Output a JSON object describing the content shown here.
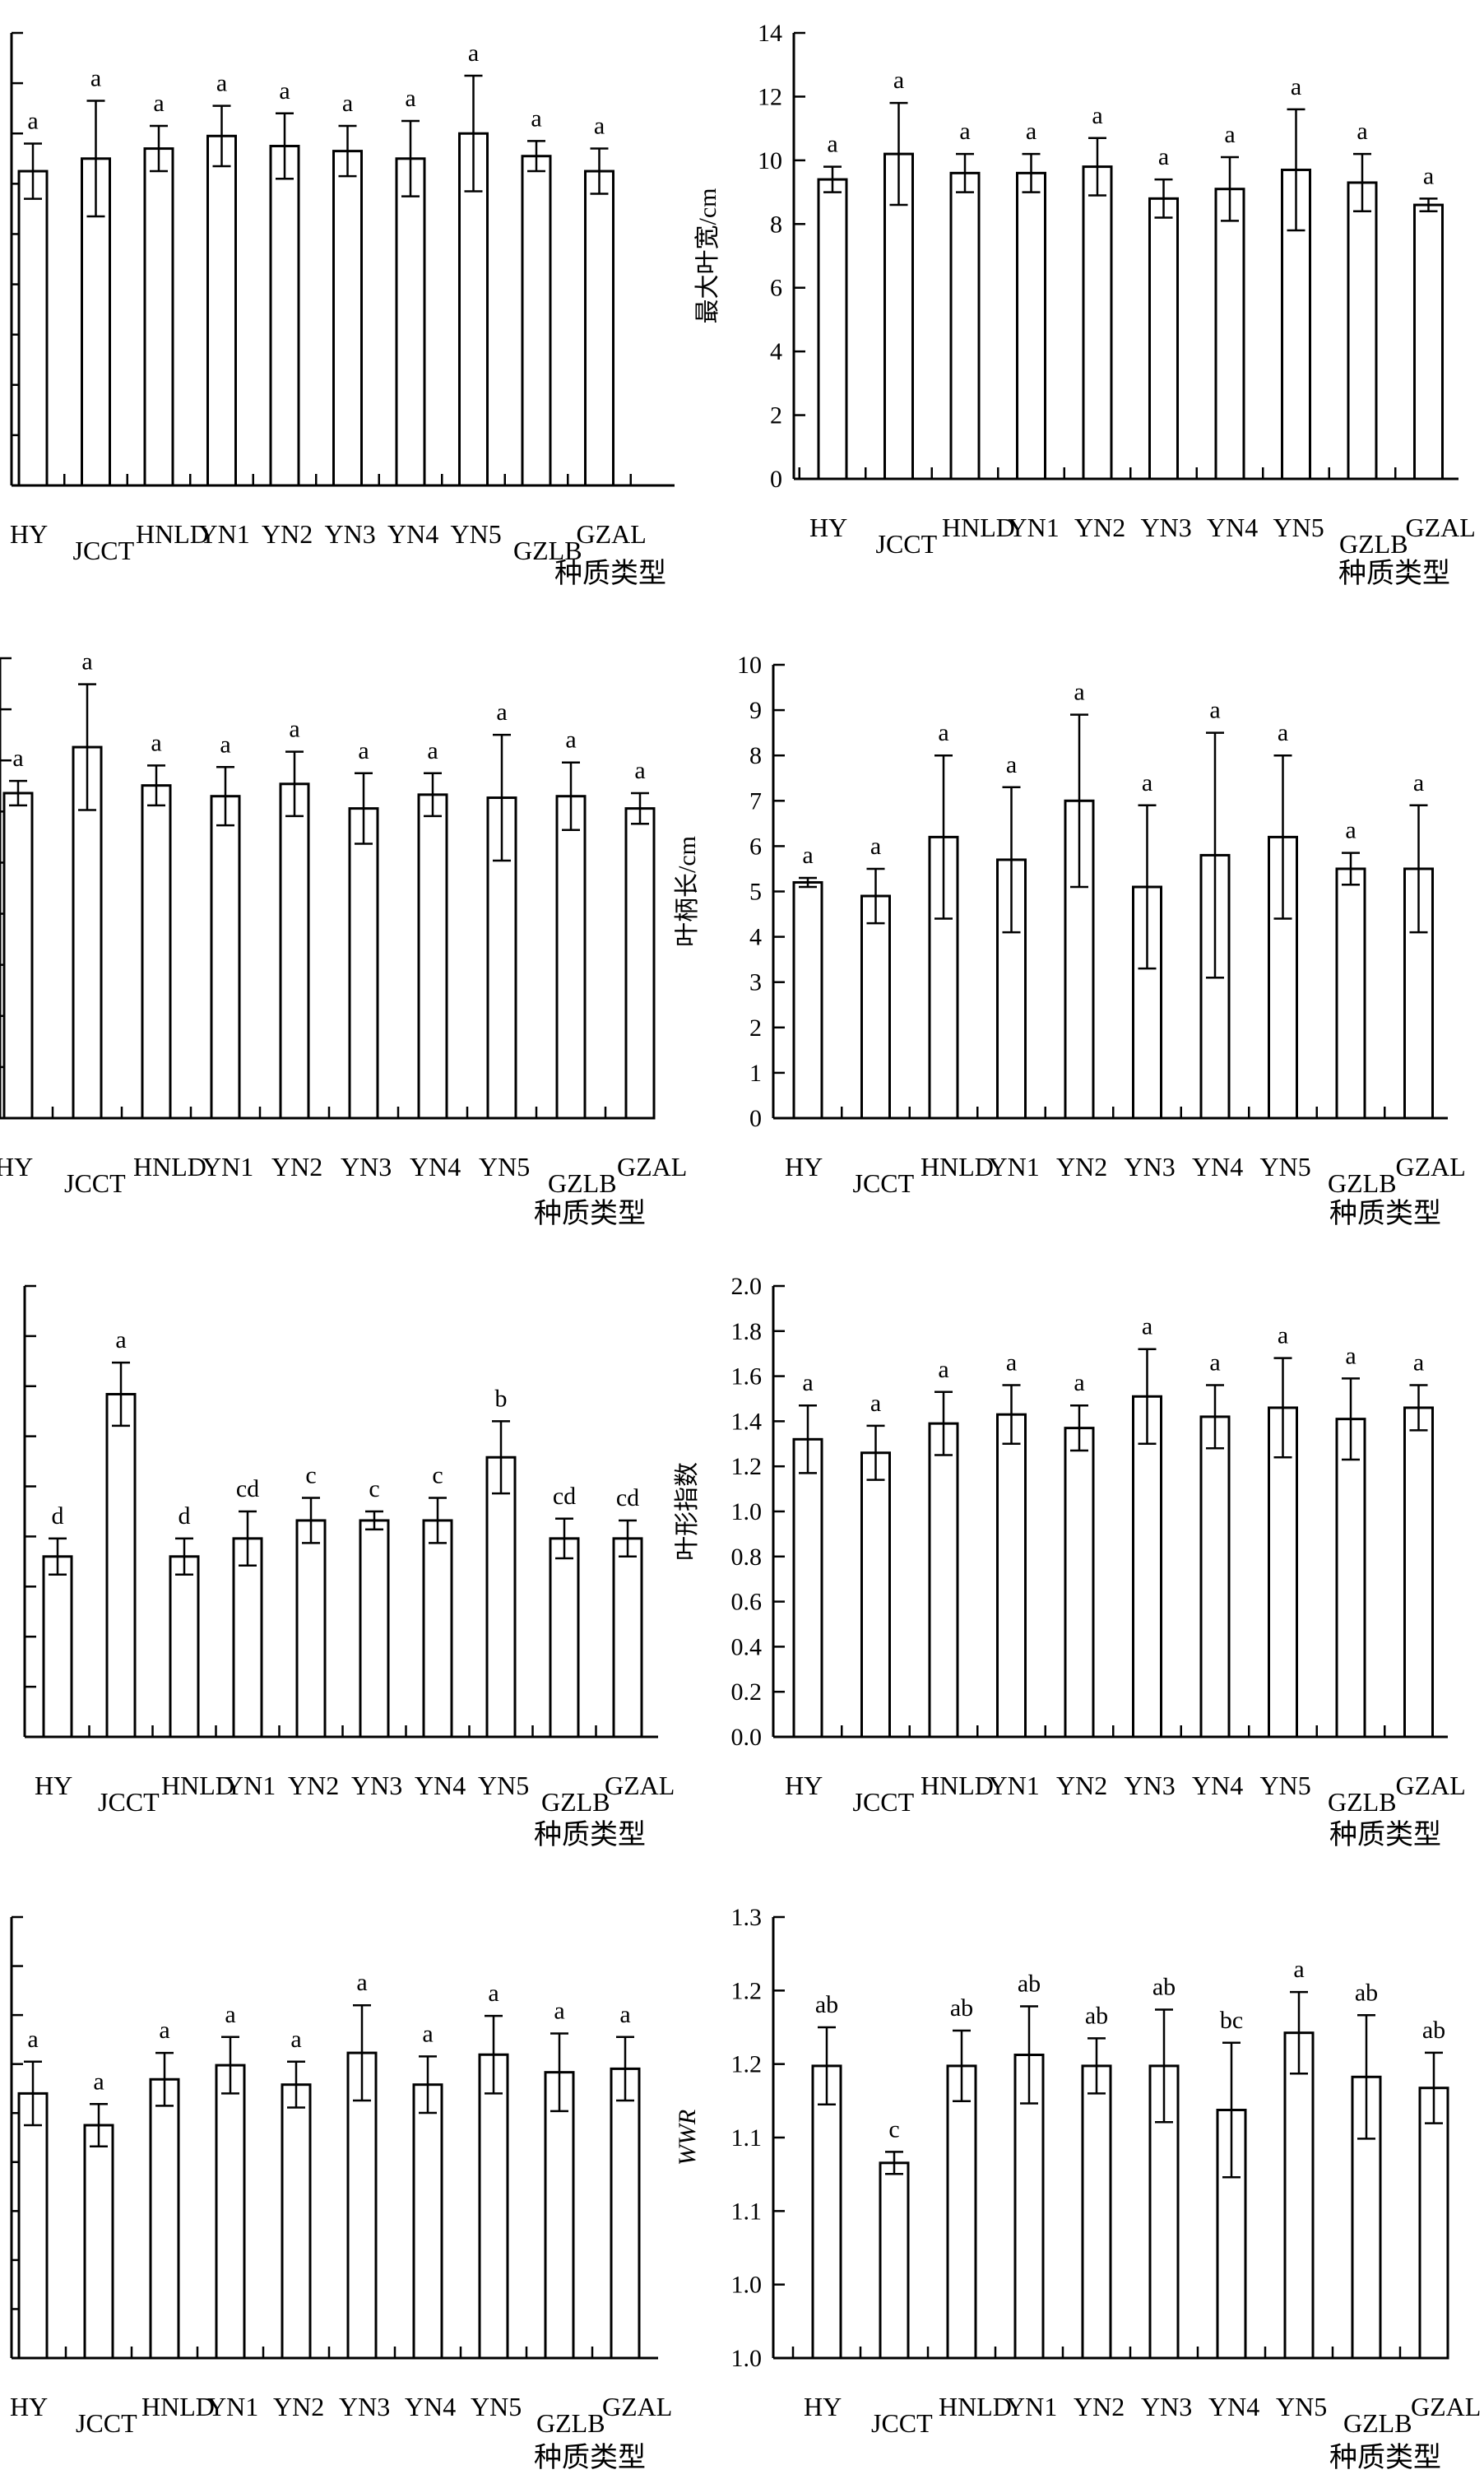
{
  "chart_data": [
    {
      "type": "bar",
      "title": "",
      "xlabel": "种质类型",
      "ylabel": "",
      "ylim": [
        0,
        18
      ],
      "yticks": [],
      "categories": [
        "HY",
        "JCCT",
        "HNLD",
        "YN1",
        "YN2",
        "YN3",
        "YN4",
        "YN5",
        "GZLB",
        "GZAL"
      ],
      "values": [
        12.5,
        13.0,
        13.4,
        13.9,
        13.5,
        13.3,
        13.0,
        14.0,
        13.1,
        12.5
      ],
      "errors": [
        1.1,
        2.3,
        0.9,
        1.2,
        1.3,
        1.0,
        1.5,
        2.3,
        0.6,
        0.9
      ],
      "letters": [
        "a",
        "a",
        "a",
        "a",
        "a",
        "a",
        "a",
        "a",
        "a",
        "a"
      ]
    },
    {
      "type": "bar",
      "title": "",
      "xlabel": "种质类型",
      "ylabel": "最大叶宽/cm",
      "ylim": [
        0,
        14
      ],
      "yticks": [
        "0",
        "2",
        "4",
        "6",
        "8",
        "10",
        "12",
        "14"
      ],
      "categories": [
        "HY",
        "JCCT",
        "HNLD",
        "YN1",
        "YN2",
        "YN3",
        "YN4",
        "YN5",
        "GZLB",
        "GZAL"
      ],
      "values": [
        9.4,
        10.2,
        9.6,
        9.6,
        9.8,
        8.8,
        9.1,
        9.7,
        9.3,
        8.6
      ],
      "errors": [
        0.4,
        1.6,
        0.6,
        0.6,
        0.9,
        0.6,
        1.0,
        1.9,
        0.9,
        0.2
      ],
      "letters": [
        "a",
        "a",
        "a",
        "a",
        "a",
        "a",
        "a",
        "a",
        "a",
        "a"
      ]
    },
    {
      "type": "bar",
      "title": "",
      "xlabel": "种质类型",
      "ylabel": "",
      "ylim": [
        0,
        30
      ],
      "yticks": [],
      "categories": [
        "HY",
        "JCCT",
        "HNLD",
        "YN1",
        "YN2",
        "YN3",
        "YN4",
        "YN5",
        "GZLB",
        "GZAL"
      ],
      "values": [
        21.2,
        24.2,
        21.7,
        21.0,
        21.8,
        20.2,
        21.1,
        20.9,
        21.0,
        20.2
      ],
      "errors": [
        0.8,
        4.1,
        1.3,
        1.9,
        2.1,
        2.3,
        1.4,
        4.1,
        2.2,
        1.0
      ],
      "letters": [
        "a",
        "a",
        "a",
        "a",
        "a",
        "a",
        "a",
        "a",
        "a",
        "a"
      ]
    },
    {
      "type": "bar",
      "title": "",
      "xlabel": "种质类型",
      "ylabel": "叶柄长/cm",
      "ylim": [
        0,
        10
      ],
      "yticks": [
        "0",
        "1",
        "2",
        "3",
        "4",
        "5",
        "6",
        "7",
        "8",
        "9",
        "10"
      ],
      "categories": [
        "HY",
        "JCCT",
        "HNLD",
        "YN1",
        "YN2",
        "YN3",
        "YN4",
        "YN5",
        "GZLB",
        "GZAL"
      ],
      "values": [
        5.2,
        4.9,
        6.2,
        5.7,
        7.0,
        5.1,
        5.8,
        6.2,
        5.5,
        5.5
      ],
      "errors": [
        0.1,
        0.6,
        1.8,
        1.6,
        1.9,
        1.8,
        2.7,
        1.8,
        0.35,
        1.4
      ],
      "letters": [
        "a",
        "a",
        "a",
        "a",
        "a",
        "a",
        "a",
        "a",
        "a",
        "a"
      ]
    },
    {
      "type": "bar",
      "title": "",
      "xlabel": "种质类型",
      "ylabel": "",
      "ylim": [
        0,
        5
      ],
      "yticks": [],
      "categories": [
        "HY",
        "JCCT",
        "HNLD",
        "YN1",
        "YN2",
        "YN3",
        "YN4",
        "YN5",
        "GZLB",
        "GZAL"
      ],
      "values": [
        2.0,
        3.8,
        2.0,
        2.2,
        2.4,
        2.4,
        2.4,
        3.1,
        2.2,
        2.2
      ],
      "errors": [
        0.2,
        0.35,
        0.2,
        0.3,
        0.25,
        0.1,
        0.25,
        0.4,
        0.22,
        0.2
      ],
      "letters": [
        "d",
        "a",
        "d",
        "cd",
        "c",
        "c",
        "c",
        "b",
        "cd",
        "cd"
      ]
    },
    {
      "type": "bar",
      "title": "",
      "xlabel": "种质类型",
      "ylabel": "叶形指数",
      "ylim": [
        0,
        2.0
      ],
      "yticks": [
        "0.0",
        "0.2",
        "0.4",
        "0.6",
        "0.8",
        "1.0",
        "1.2",
        "1.4",
        "1.6",
        "1.8",
        "2.0"
      ],
      "categories": [
        "HY",
        "JCCT",
        "HNLD",
        "YN1",
        "YN2",
        "YN3",
        "YN4",
        "YN5",
        "GZLB",
        "GZAL"
      ],
      "values": [
        1.32,
        1.26,
        1.39,
        1.43,
        1.37,
        1.51,
        1.42,
        1.46,
        1.41,
        1.46
      ],
      "errors": [
        0.15,
        0.12,
        0.14,
        0.13,
        0.1,
        0.21,
        0.14,
        0.22,
        0.18,
        0.1
      ],
      "letters": [
        "a",
        "a",
        "a",
        "a",
        "a",
        "a",
        "a",
        "a",
        "a",
        "a"
      ]
    },
    {
      "type": "bar",
      "title": "",
      "xlabel": "种质类型",
      "ylabel": "",
      "ylim": [
        0,
        2.5
      ],
      "yticks": [],
      "categories": [
        "HY",
        "JCCT",
        "HNLD",
        "YN1",
        "YN2",
        "YN3",
        "YN4",
        "YN5",
        "GZLB",
        "GZAL"
      ],
      "values": [
        1.5,
        1.32,
        1.58,
        1.66,
        1.55,
        1.73,
        1.55,
        1.72,
        1.62,
        1.64
      ],
      "errors": [
        0.18,
        0.12,
        0.15,
        0.16,
        0.13,
        0.27,
        0.16,
        0.22,
        0.22,
        0.18
      ],
      "letters": [
        "a",
        "a",
        "a",
        "a",
        "a",
        "a",
        "a",
        "a",
        "a",
        "a"
      ]
    },
    {
      "type": "bar",
      "title": "",
      "xlabel": "种质类型",
      "ylabel": "WWR",
      "ylim": [
        0.9,
        1.3
      ],
      "yticks": [
        "1.0",
        "1.0",
        "1.1",
        "1.1",
        "1.2",
        "1.2",
        "1.3"
      ],
      "categories": [
        "HY",
        "JCCT",
        "HNLD",
        "YN1",
        "YN2",
        "YN3",
        "YN4",
        "YN5",
        "GZLB",
        "GZAL"
      ],
      "values": [
        1.165,
        1.077,
        1.165,
        1.175,
        1.165,
        1.165,
        1.125,
        1.195,
        1.155,
        1.145
      ],
      "errors": [
        0.035,
        0.01,
        0.032,
        0.044,
        0.025,
        0.051,
        0.061,
        0.037,
        0.056,
        0.032
      ],
      "letters": [
        "ab",
        "c",
        "ab",
        "ab",
        "ab",
        "ab",
        "bc",
        "a",
        "ab",
        "ab"
      ]
    }
  ]
}
